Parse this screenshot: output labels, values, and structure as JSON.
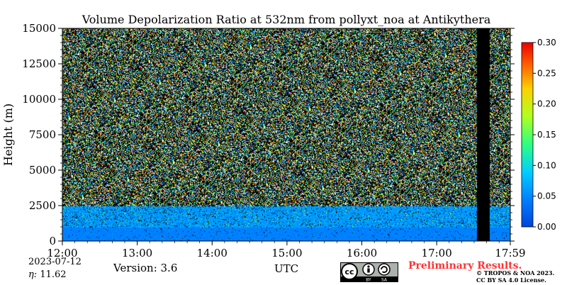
{
  "chart_data": {
    "type": "heatmap",
    "title": "Volume Depolarization Ratio at 532nm from pollyxt_noa at Antikythera",
    "ylabel": "Height (m)",
    "xlabel": "UTC",
    "x_ticks": [
      "12:00",
      "13:00",
      "14:00",
      "15:00",
      "16:00",
      "17:00",
      "17:59"
    ],
    "x_tick_hours": [
      12.0,
      13.0,
      14.0,
      15.0,
      16.0,
      17.0,
      17.983
    ],
    "xlim": [
      12.0,
      17.983
    ],
    "y_ticks": [
      0,
      2500,
      5000,
      7500,
      10000,
      12500,
      15000
    ],
    "ylim": [
      0,
      15000
    ],
    "colorbar": {
      "ticks": [
        0.0,
        0.05,
        0.1,
        0.15,
        0.2,
        0.25,
        0.3
      ],
      "tick_labels": [
        "0.00",
        "0.05",
        "0.10",
        "0.15",
        "0.20",
        "0.25",
        "0.30"
      ],
      "range": [
        0.0,
        0.3
      ],
      "colormap": "jet"
    },
    "layers": [
      {
        "name_visible": false,
        "bottom": 0,
        "top": 1000,
        "value": 0.02
      },
      {
        "name_visible": false,
        "bottom": 1000,
        "top": 2500,
        "value": 0.04
      },
      {
        "name_visible": false,
        "bottom": 2500,
        "top": 15000,
        "value": "noise"
      }
    ],
    "data_gap_hours": [
      17.53,
      17.7
    ]
  },
  "footer": {
    "date": "2023-07-12",
    "eta_label": "η:",
    "eta_value": "11.62",
    "version": "Version: 3.6",
    "preliminary": "Preliminary Results.",
    "copyright_line1": "© TROPOS & NOA 2023.",
    "copyright_line2": "CC BY SA 4.0 License.",
    "cc_by": "BY",
    "cc_sa": "SA"
  }
}
